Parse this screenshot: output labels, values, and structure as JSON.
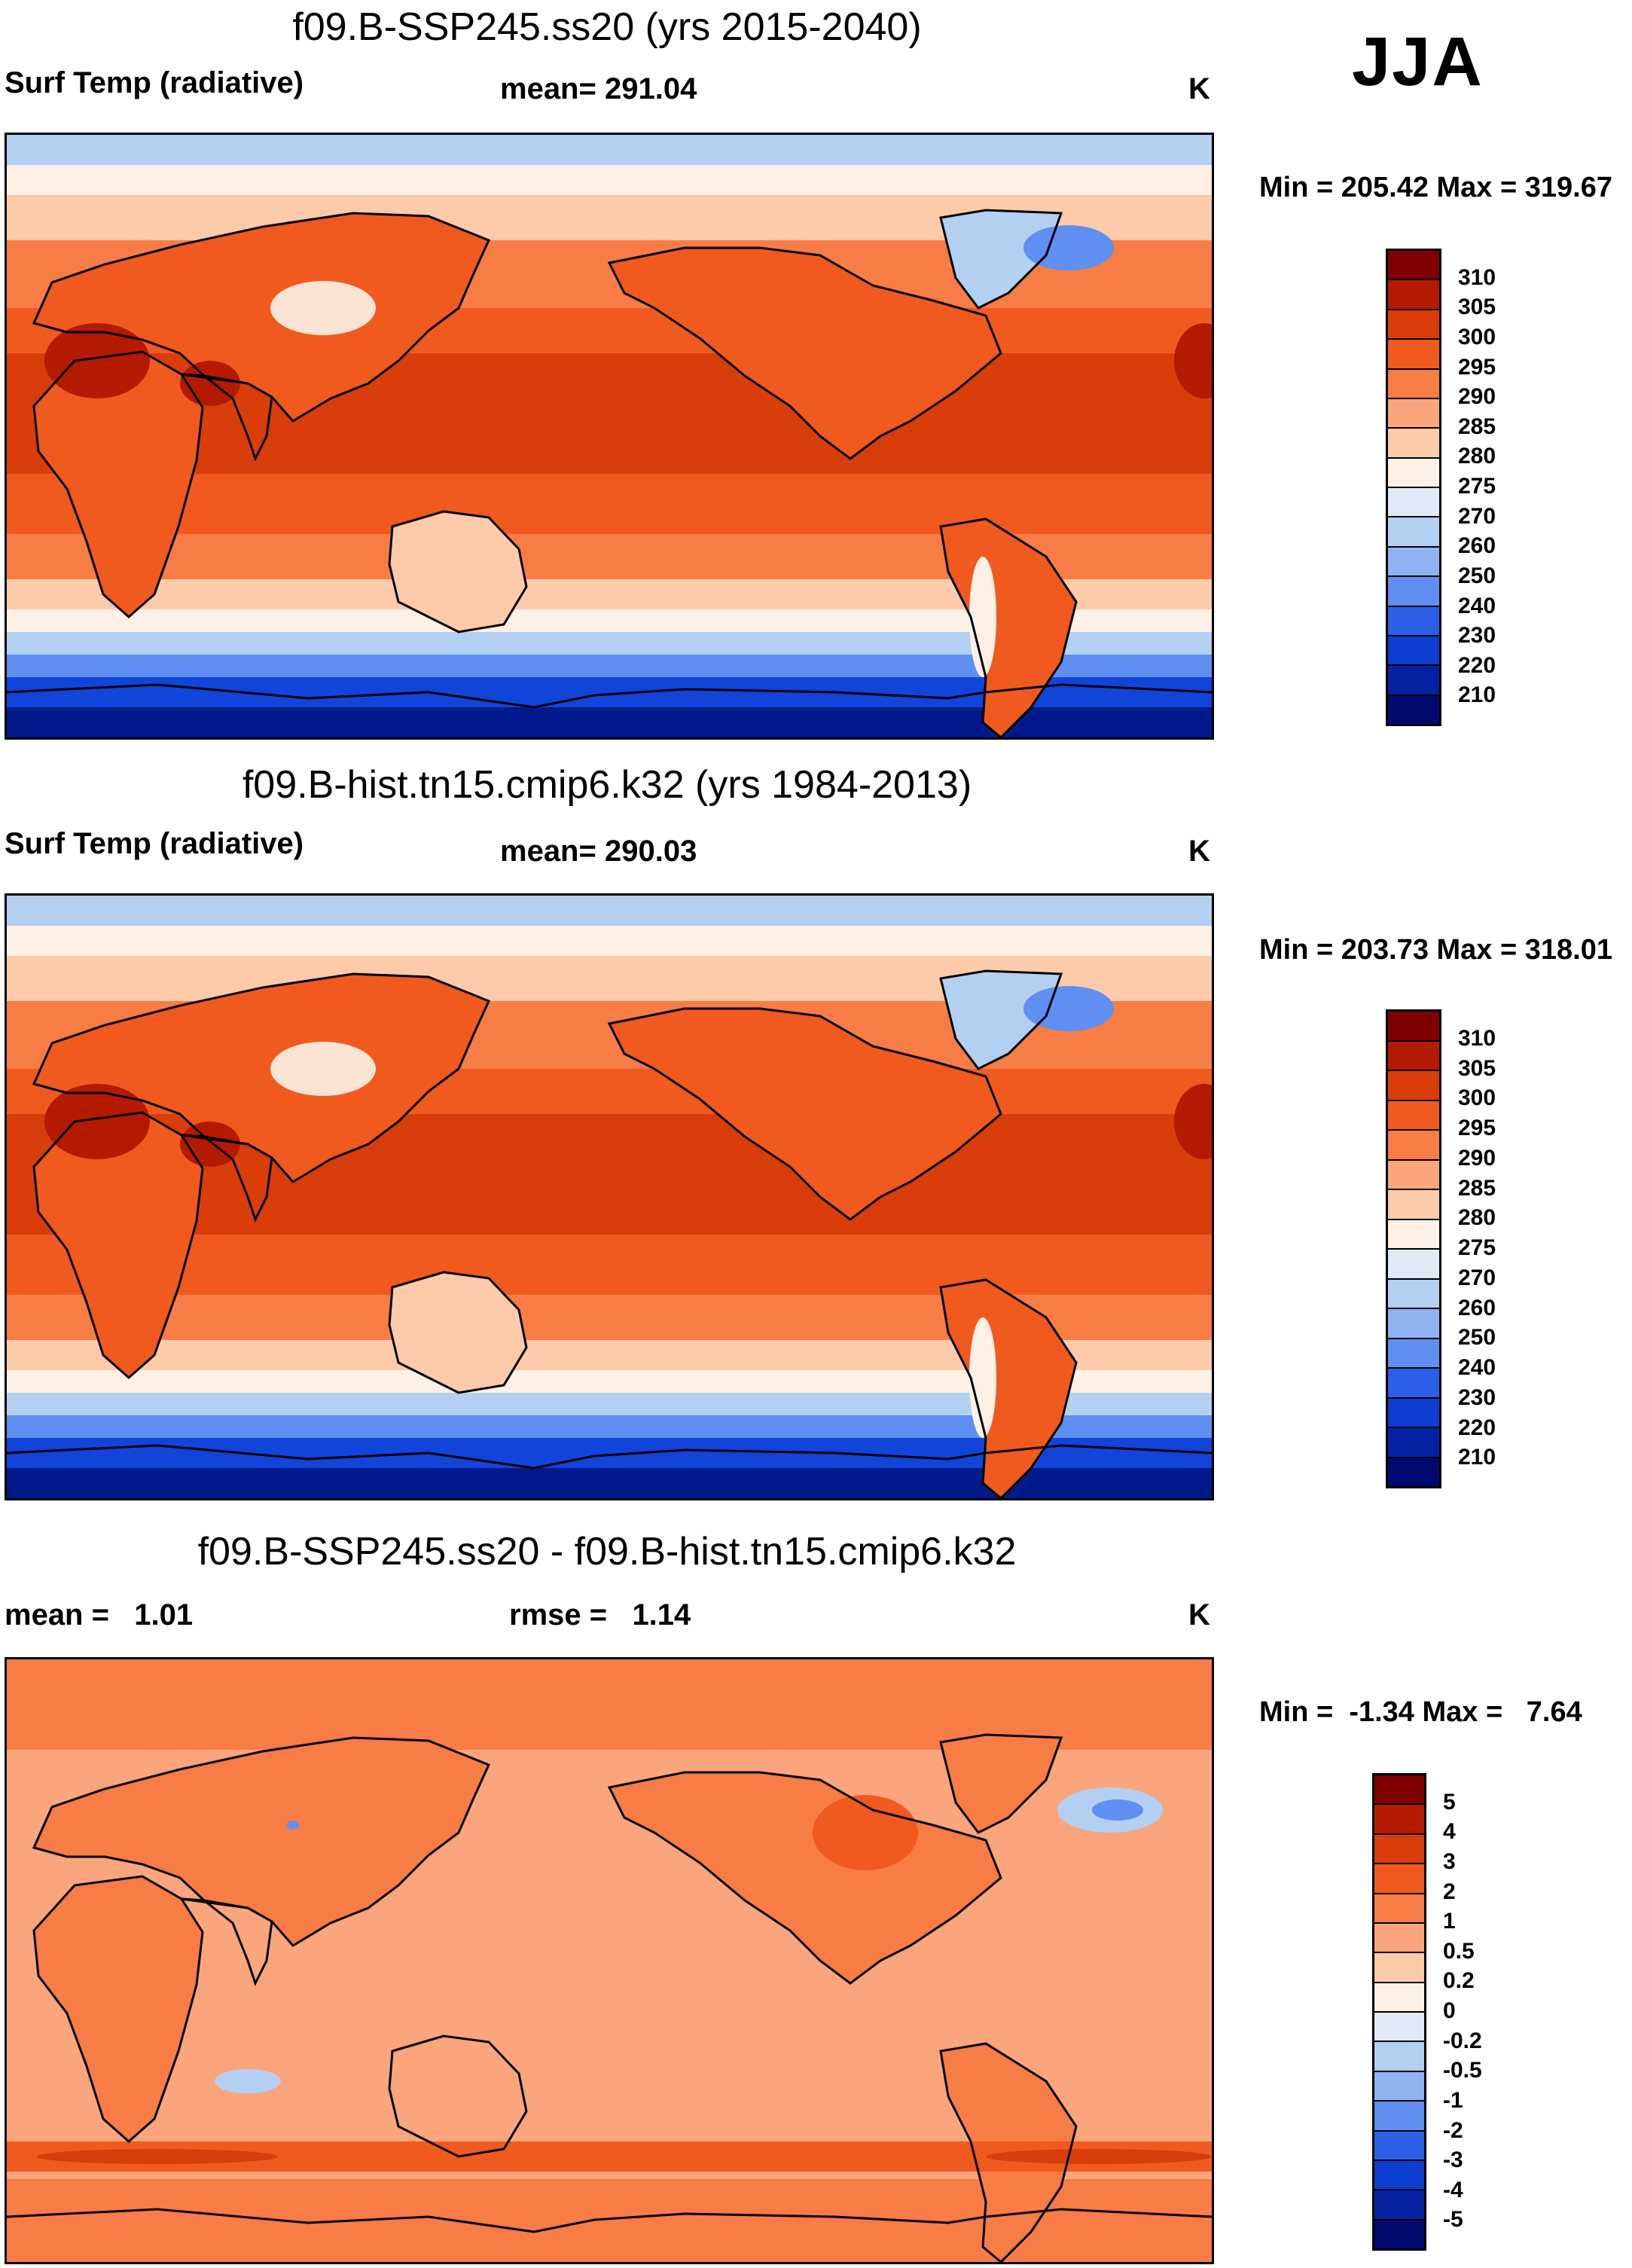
{
  "season": "JJA",
  "panels": [
    {
      "title": "f09.B-SSP245.ss20 (yrs 2015-2040)",
      "left_label": "Surf Temp (radiative)",
      "center_label": "mean= 291.04",
      "right_label": "K",
      "minmax": "Min = 205.42 Max = 319.67",
      "colorbar": {
        "colors": [
          "#7f0000",
          "#b31a00",
          "#d93d0a",
          "#f05a1e",
          "#f77c45",
          "#fba57c",
          "#fdcbaa",
          "#fff0e6",
          "#deebf7",
          "#b3cff2",
          "#8fb2f0",
          "#5f8ff0",
          "#2b5fe6",
          "#0d3dd1",
          "#0522a3",
          "#000a6e"
        ],
        "labels": [
          "310",
          "305",
          "300",
          "295",
          "290",
          "285",
          "280",
          "275",
          "270",
          "260",
          "250",
          "240",
          "230",
          "220",
          "210"
        ]
      }
    },
    {
      "title": "f09.B-hist.tn15.cmip6.k32 (yrs 1984-2013)",
      "left_label": "Surf Temp (radiative)",
      "center_label": "mean= 290.03",
      "right_label": "K",
      "minmax": "Min = 203.73 Max = 318.01",
      "colorbar": {
        "colors": [
          "#7f0000",
          "#b31a00",
          "#d93d0a",
          "#f05a1e",
          "#f77c45",
          "#fba57c",
          "#fdcbaa",
          "#fff0e6",
          "#deebf7",
          "#b3cff2",
          "#8fb2f0",
          "#5f8ff0",
          "#2b5fe6",
          "#0d3dd1",
          "#0522a3",
          "#000a6e"
        ],
        "labels": [
          "310",
          "305",
          "300",
          "295",
          "290",
          "285",
          "280",
          "275",
          "270",
          "260",
          "250",
          "240",
          "230",
          "220",
          "210"
        ]
      }
    },
    {
      "title": "f09.B-SSP245.ss20 - f09.B-hist.tn15.cmip6.k32",
      "left_label": "mean =   1.01",
      "center_label": "rmse =   1.14",
      "right_label": "K",
      "minmax": "Min =  -1.34 Max =   7.64",
      "colorbar": {
        "colors": [
          "#7f0000",
          "#b31a00",
          "#d93d0a",
          "#f05a1e",
          "#f77c45",
          "#fba57c",
          "#fdcbaa",
          "#fff0e6",
          "#deebf7",
          "#b3cff2",
          "#8fb2f0",
          "#5f8ff0",
          "#2b5fe6",
          "#0d3dd1",
          "#0522a3",
          "#000a6e"
        ],
        "labels": [
          "5",
          "4",
          "3",
          "2",
          "1",
          "0.5",
          "0.2",
          "0",
          "-0.2",
          "-0.5",
          "-1",
          "-2",
          "-3",
          "-4",
          "-5"
        ]
      }
    }
  ],
  "map_colors": {
    "polar_ice": "#1144d8",
    "deep_ice": "#001a8c",
    "cold_band": "#5f8ff0",
    "cool_band": "#b3cff2",
    "mild_band": "#fff0e6",
    "subpolar_ocean": "#fdcbaa",
    "mid_ocean": "#f77c45",
    "warm_ocean": "#f05a1e",
    "tropical_ocean": "#d93d0a",
    "hot_land": "#b31a00",
    "plateau": "#fbe3d4",
    "greenland": "#b3cff2",
    "coast": "#000000",
    "diff_base": "#fba57c",
    "diff_land": "#f77c45",
    "diff_high": "#f05a1e",
    "diff_peak": "#d93d0a",
    "diff_neg": "#b3cff2",
    "diff_strong_neg": "#5f8ff0"
  }
}
